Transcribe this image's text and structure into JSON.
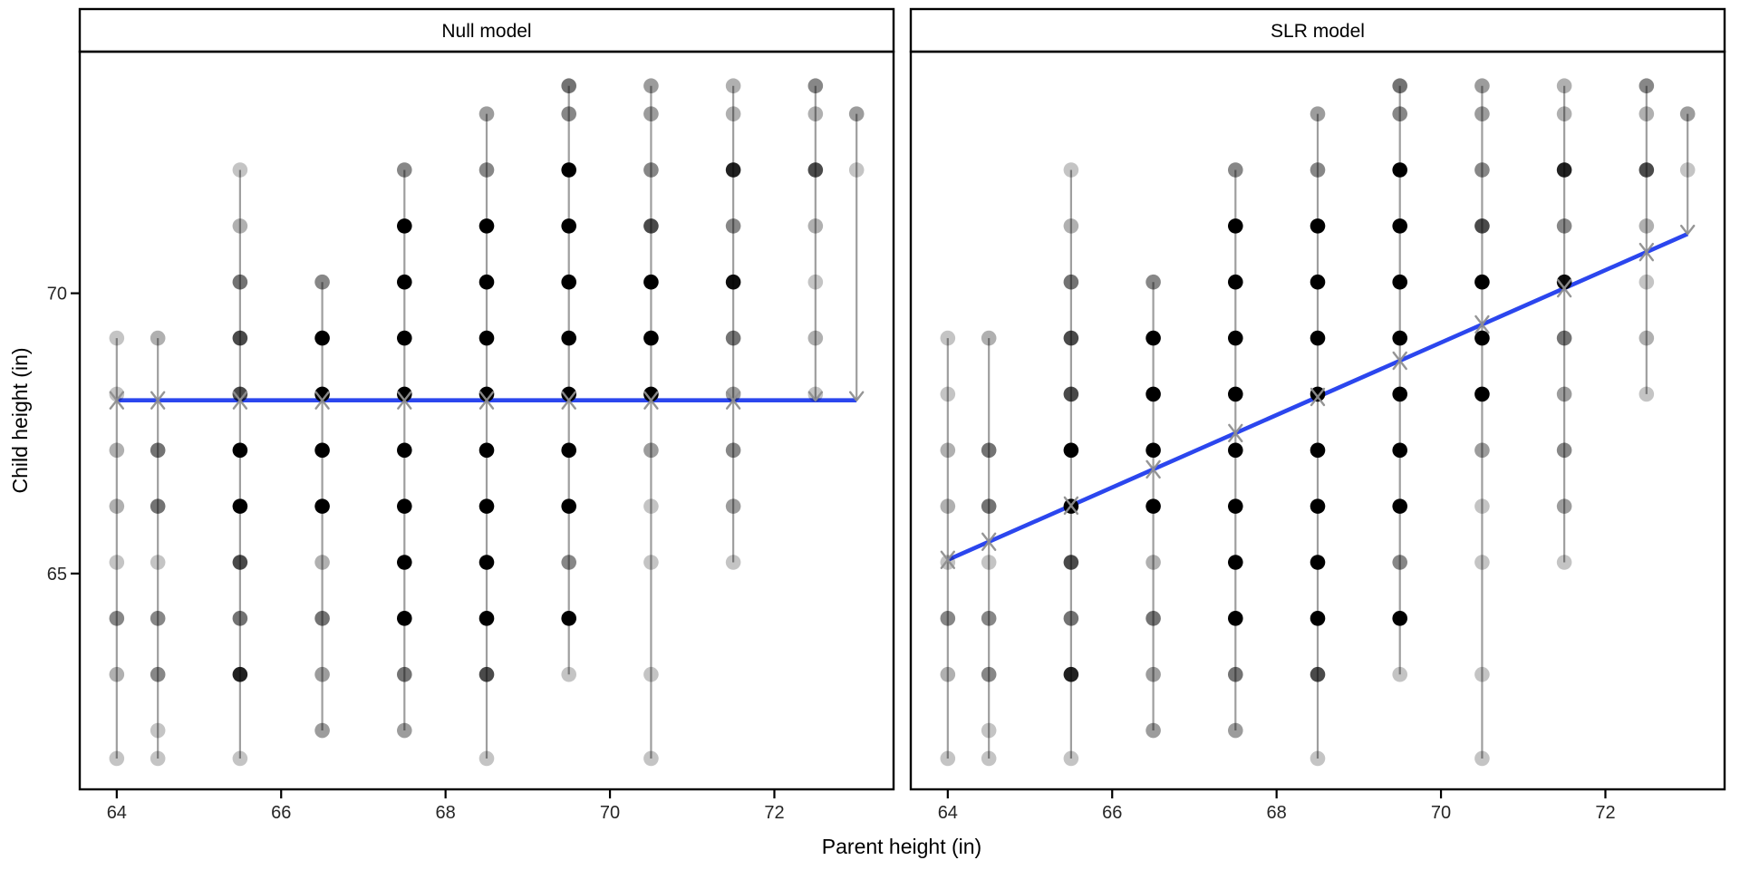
{
  "figure": {
    "background": "#ffffff"
  },
  "panels": [
    {
      "id": "null",
      "title": "Null model"
    },
    {
      "id": "slr",
      "title": "SLR model"
    }
  ],
  "axes": {
    "x": {
      "label": "Parent height (in)",
      "ticks": [
        64,
        66,
        68,
        70,
        72
      ],
      "domain": [
        63.55,
        73.45
      ]
    },
    "y": {
      "label": "Child height (in)",
      "ticks": [
        65,
        70
      ],
      "domain": [
        61.15,
        74.31
      ]
    }
  },
  "models": {
    "null": {
      "fitted_mean": 68.09
    },
    "slr": {
      "intercept": 23.9,
      "slope": 0.646
    }
  },
  "style": {
    "fit_line_color": "#2b46ee",
    "segment_color": "#949494",
    "arrow_color": "#8f8f8f",
    "point_color": "#000000",
    "border_color": "#000000",
    "alpha_base": 0.15,
    "alpha_per_count": 0.08
  },
  "chart_data": {
    "type": "scatter",
    "title": "",
    "xlabel": "Parent height (in)",
    "ylabel": "Child height (in)",
    "facets": [
      "Null model",
      "SLR model"
    ],
    "x_ticks": [
      64,
      66,
      68,
      70,
      72
    ],
    "y_ticks": [
      65,
      70
    ],
    "xlim": [
      63.55,
      73.45
    ],
    "ylim": [
      61.15,
      74.31
    ],
    "legend": "none",
    "grid": false,
    "null_model_line": {
      "y": 68.09,
      "x_start": 64,
      "x_end": 73
    },
    "slr_model_line": {
      "x_start": 64,
      "y_start": 65.24,
      "x_end": 73,
      "y_end": 71.06
    },
    "point_shade_note": "dot darkness encodes count of children at that (parent,child) height cell",
    "frequency_table": [
      {
        "parent": 64.0,
        "children": [
          {
            "height": 61.7,
            "count": 1
          },
          {
            "height": 63.2,
            "count": 2
          },
          {
            "height": 64.2,
            "count": 4
          },
          {
            "height": 65.2,
            "count": 1
          },
          {
            "height": 66.2,
            "count": 2
          },
          {
            "height": 67.2,
            "count": 2
          },
          {
            "height": 68.2,
            "count": 1
          },
          {
            "height": 69.2,
            "count": 1
          }
        ]
      },
      {
        "parent": 64.5,
        "children": [
          {
            "height": 61.7,
            "count": 1
          },
          {
            "height": 62.2,
            "count": 1
          },
          {
            "height": 63.2,
            "count": 4
          },
          {
            "height": 64.2,
            "count": 4
          },
          {
            "height": 65.2,
            "count": 1
          },
          {
            "height": 66.2,
            "count": 5
          },
          {
            "height": 67.2,
            "count": 5
          },
          {
            "height": 69.2,
            "count": 2
          }
        ]
      },
      {
        "parent": 65.5,
        "children": [
          {
            "height": 61.7,
            "count": 1
          },
          {
            "height": 63.2,
            "count": 9
          },
          {
            "height": 64.2,
            "count": 5
          },
          {
            "height": 65.2,
            "count": 7
          },
          {
            "height": 66.2,
            "count": 11
          },
          {
            "height": 67.2,
            "count": 11
          },
          {
            "height": 68.2,
            "count": 7
          },
          {
            "height": 69.2,
            "count": 7
          },
          {
            "height": 70.2,
            "count": 5
          },
          {
            "height": 71.2,
            "count": 2
          },
          {
            "height": 72.2,
            "count": 1
          }
        ]
      },
      {
        "parent": 66.5,
        "children": [
          {
            "height": 62.2,
            "count": 3
          },
          {
            "height": 63.2,
            "count": 3
          },
          {
            "height": 64.2,
            "count": 5
          },
          {
            "height": 65.2,
            "count": 2
          },
          {
            "height": 66.2,
            "count": 17
          },
          {
            "height": 67.2,
            "count": 17
          },
          {
            "height": 68.2,
            "count": 14
          },
          {
            "height": 69.2,
            "count": 13
          },
          {
            "height": 70.2,
            "count": 4
          }
        ]
      },
      {
        "parent": 67.5,
        "children": [
          {
            "height": 62.2,
            "count": 3
          },
          {
            "height": 63.2,
            "count": 5
          },
          {
            "height": 64.2,
            "count": 14
          },
          {
            "height": 65.2,
            "count": 15
          },
          {
            "height": 66.2,
            "count": 36
          },
          {
            "height": 67.2,
            "count": 38
          },
          {
            "height": 68.2,
            "count": 28
          },
          {
            "height": 69.2,
            "count": 38
          },
          {
            "height": 70.2,
            "count": 19
          },
          {
            "height": 71.2,
            "count": 11
          },
          {
            "height": 72.2,
            "count": 4
          }
        ]
      },
      {
        "parent": 68.5,
        "children": [
          {
            "height": 61.7,
            "count": 1
          },
          {
            "height": 63.2,
            "count": 7
          },
          {
            "height": 64.2,
            "count": 11
          },
          {
            "height": 65.2,
            "count": 16
          },
          {
            "height": 66.2,
            "count": 25
          },
          {
            "height": 67.2,
            "count": 31
          },
          {
            "height": 68.2,
            "count": 34
          },
          {
            "height": 69.2,
            "count": 48
          },
          {
            "height": 70.2,
            "count": 21
          },
          {
            "height": 71.2,
            "count": 18
          },
          {
            "height": 72.2,
            "count": 4
          },
          {
            "height": 73.2,
            "count": 3
          }
        ]
      },
      {
        "parent": 69.5,
        "children": [
          {
            "height": 63.2,
            "count": 1
          },
          {
            "height": 64.2,
            "count": 16
          },
          {
            "height": 65.2,
            "count": 4
          },
          {
            "height": 66.2,
            "count": 17
          },
          {
            "height": 67.2,
            "count": 27
          },
          {
            "height": 68.2,
            "count": 20
          },
          {
            "height": 69.2,
            "count": 33
          },
          {
            "height": 70.2,
            "count": 25
          },
          {
            "height": 71.2,
            "count": 20
          },
          {
            "height": 72.2,
            "count": 11
          },
          {
            "height": 73.2,
            "count": 4
          },
          {
            "height": 73.7,
            "count": 5
          }
        ]
      },
      {
        "parent": 70.5,
        "children": [
          {
            "height": 61.7,
            "count": 1
          },
          {
            "height": 63.2,
            "count": 1
          },
          {
            "height": 65.2,
            "count": 1
          },
          {
            "height": 66.2,
            "count": 1
          },
          {
            "height": 67.2,
            "count": 3
          },
          {
            "height": 68.2,
            "count": 12
          },
          {
            "height": 69.2,
            "count": 18
          },
          {
            "height": 70.2,
            "count": 14
          },
          {
            "height": 71.2,
            "count": 7
          },
          {
            "height": 72.2,
            "count": 4
          },
          {
            "height": 73.2,
            "count": 3
          },
          {
            "height": 73.7,
            "count": 3
          }
        ]
      },
      {
        "parent": 71.5,
        "children": [
          {
            "height": 65.2,
            "count": 1
          },
          {
            "height": 66.2,
            "count": 3
          },
          {
            "height": 67.2,
            "count": 4
          },
          {
            "height": 68.2,
            "count": 3
          },
          {
            "height": 69.2,
            "count": 5
          },
          {
            "height": 70.2,
            "count": 10
          },
          {
            "height": 71.2,
            "count": 4
          },
          {
            "height": 72.2,
            "count": 9
          },
          {
            "height": 73.2,
            "count": 2
          },
          {
            "height": 73.7,
            "count": 2
          }
        ]
      },
      {
        "parent": 72.5,
        "children": [
          {
            "height": 68.2,
            "count": 1
          },
          {
            "height": 69.2,
            "count": 2
          },
          {
            "height": 70.2,
            "count": 1
          },
          {
            "height": 71.2,
            "count": 2
          },
          {
            "height": 72.2,
            "count": 7
          },
          {
            "height": 73.2,
            "count": 2
          },
          {
            "height": 73.7,
            "count": 4
          }
        ]
      },
      {
        "parent": 73.0,
        "children": [
          {
            "height": 72.2,
            "count": 1
          },
          {
            "height": 73.2,
            "count": 3
          }
        ]
      }
    ]
  }
}
